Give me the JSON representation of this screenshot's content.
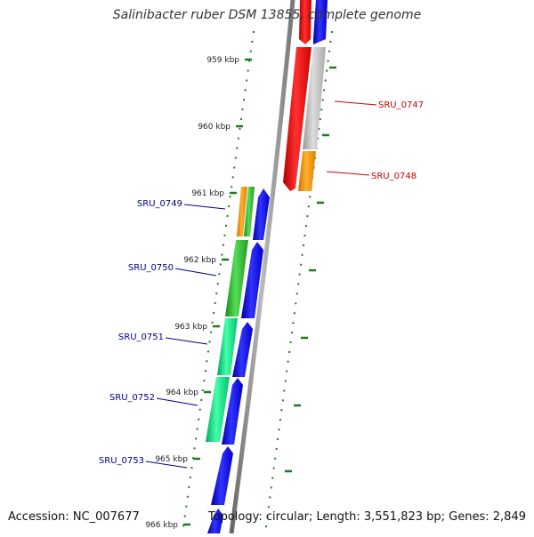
{
  "title": "Salinibacter ruber DSM 13855, complete genome",
  "accession": "Accession: NC_007677",
  "summary": "Topology: circular; Length: 3,551,823 bp; Genes: 2,849",
  "ticks": [
    "959 kbp",
    "960 kbp",
    "961 kbp",
    "962 kbp",
    "963 kbp",
    "964 kbp",
    "965 kbp",
    "966 kbp"
  ],
  "genes": [
    {
      "name": "SRU_0747",
      "color": "#cc0000"
    },
    {
      "name": "SRU_0748",
      "color": "#cc0000"
    },
    {
      "name": "SRU_0749",
      "color": "#00008b"
    },
    {
      "name": "SRU_0750",
      "color": "#00008b"
    },
    {
      "name": "SRU_0751",
      "color": "#00008b"
    },
    {
      "name": "SRU_0752",
      "color": "#00008b"
    },
    {
      "name": "SRU_0753",
      "color": "#00008b"
    }
  ],
  "colors": {
    "backbone": "#8a8a8a",
    "tick": "#1f7a1f",
    "forward_cds": "#0000ff",
    "red_cds": "#ff0000",
    "grey_cds": "#bbbbbb",
    "orange_cds": "#ff9900",
    "green_cds": "#33cc33",
    "mint_cds": "#00e68a"
  }
}
